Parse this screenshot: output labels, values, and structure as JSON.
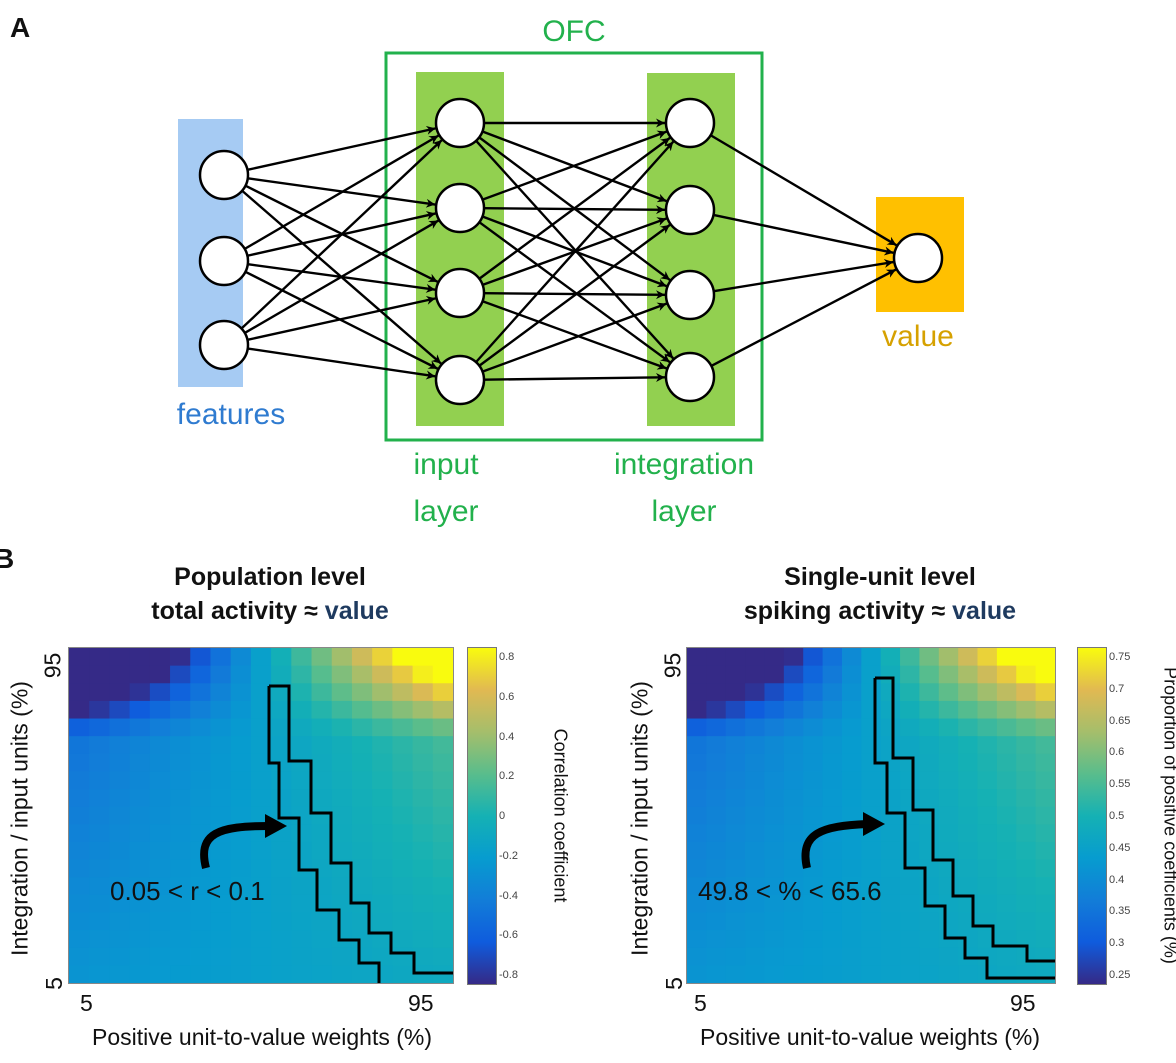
{
  "panel_a": {
    "letter": "A",
    "ofc_label": "OFC",
    "features_label": "features",
    "value_label": "value",
    "input_layer_label": [
      "input",
      "layer"
    ],
    "integration_layer_label": [
      "integration",
      "layer"
    ],
    "colors": {
      "features": "#a6cbf3",
      "layer": "#92d050",
      "value": "#ffc000",
      "features_text": "#2f7bd0",
      "ofc_text": "#22b14c",
      "value_text": "#d6a100"
    }
  },
  "panel_b": {
    "letter": "B",
    "left": {
      "title_line1": "Population level",
      "title_line2_prefix": "total activity ",
      "approx": "≈",
      "title_line2_suffix": " value",
      "ylabel": "Integration / input units (%)",
      "xlabel": "Positive unit-to-value weights (%)",
      "ytick_top": "95",
      "ytick_bottom": "5",
      "xtick_left": "5",
      "xtick_right": "95",
      "annotation": "0.05 < r < 0.1",
      "colorbar_label": "Correlation coefficient",
      "colorbar_ticks": [
        "0.8",
        "0.6",
        "0.4",
        "0.2",
        "0",
        "-0.2",
        "-0.4",
        "-0.6",
        "-0.8"
      ]
    },
    "right": {
      "title_line1": "Single-unit level",
      "title_line2_prefix": "spiking activity ",
      "approx": "≈",
      "title_line2_suffix": " value",
      "ylabel": "Integration / input units (%)",
      "xlabel": "Positive unit-to-value weights (%)",
      "ytick_top": "95",
      "ytick_bottom": "5",
      "xtick_left": "5",
      "xtick_right": "95",
      "annotation": "49.8 < % < 65.6",
      "colorbar_label": "Proportion of positive coefficients (%)",
      "colorbar_ticks": [
        "0.75",
        "0.7",
        "0.65",
        "0.6",
        "0.55",
        "0.5",
        "0.45",
        "0.4",
        "0.35",
        "0.3",
        "0.25"
      ]
    }
  }
}
